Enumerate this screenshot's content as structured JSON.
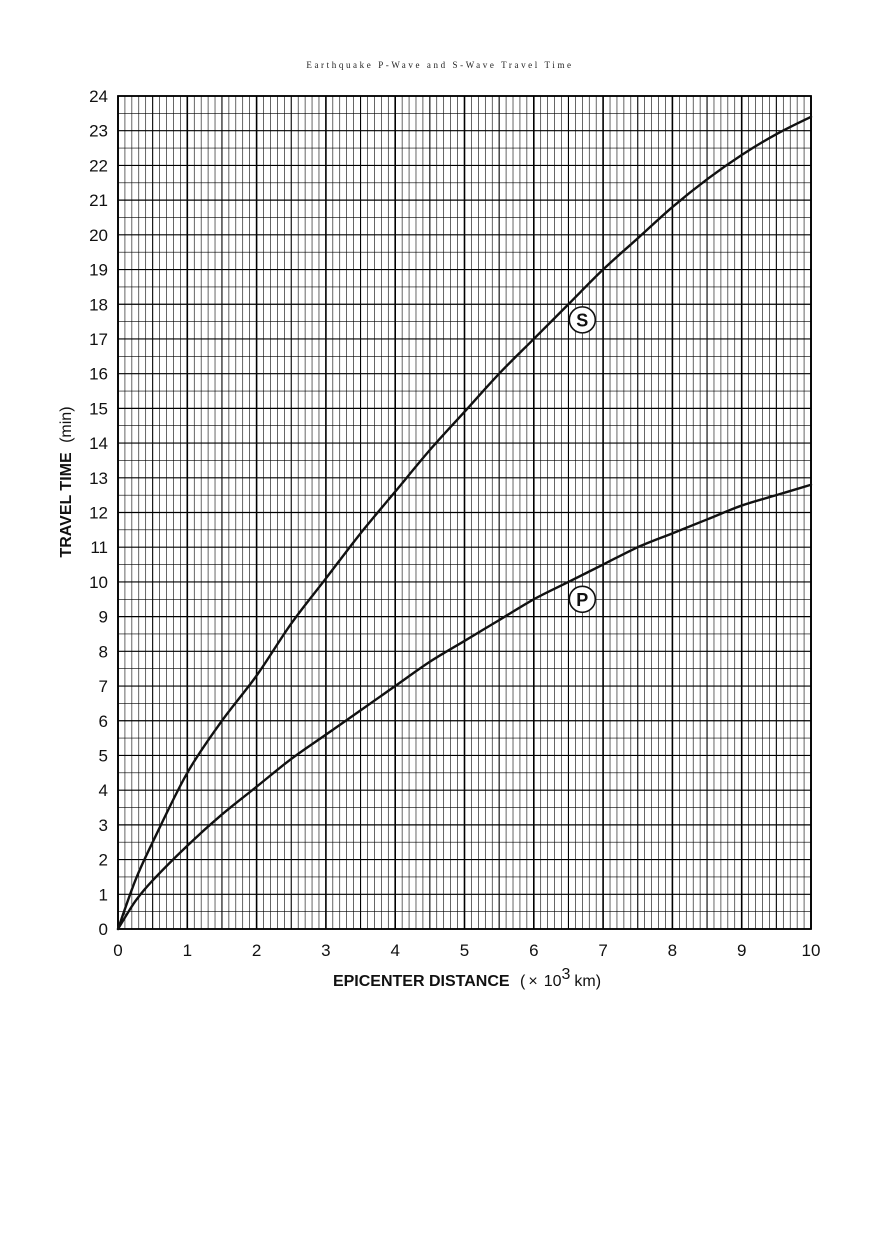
{
  "chart_data": {
    "type": "line",
    "title": "Earthquake P-Wave and S-Wave Travel Time",
    "xlabel": "EPICENTER DISTANCE",
    "xlabel_unit_prefix": "(",
    "xlabel_unit_times": "×",
    "xlabel_unit_base": "10",
    "xlabel_unit_exp": "3",
    "xlabel_unit_suffix": "km)",
    "ylabel": "TRAVEL TIME",
    "ylabel_unit": "(min)",
    "xlim": [
      0,
      10
    ],
    "ylim": [
      0,
      24
    ],
    "x_ticks": [
      "0",
      "1",
      "2",
      "3",
      "4",
      "5",
      "6",
      "7",
      "8",
      "9",
      "10"
    ],
    "y_ticks": [
      "0",
      "1",
      "2",
      "3",
      "4",
      "5",
      "6",
      "7",
      "8",
      "9",
      "10",
      "11",
      "12",
      "13",
      "14",
      "15",
      "16",
      "17",
      "18",
      "19",
      "20",
      "21",
      "22",
      "23",
      "24"
    ],
    "grid": true,
    "series": [
      {
        "name": "S",
        "x": [
          0,
          0.25,
          0.5,
          1,
          1.5,
          2,
          2.5,
          3,
          3.5,
          4,
          4.5,
          5,
          5.5,
          6,
          6.5,
          7,
          7.5,
          8,
          8.5,
          9,
          9.5,
          10
        ],
        "y": [
          0,
          1.4,
          2.5,
          4.5,
          6.0,
          7.3,
          8.8,
          10.1,
          11.4,
          12.6,
          13.8,
          14.9,
          16.0,
          17.0,
          18.0,
          19.0,
          19.9,
          20.8,
          21.6,
          22.3,
          22.9,
          23.4
        ]
      },
      {
        "name": "P",
        "x": [
          0,
          0.25,
          0.5,
          1,
          1.5,
          2,
          2.5,
          3,
          3.5,
          4,
          4.5,
          5,
          5.5,
          6,
          6.5,
          7,
          7.5,
          8,
          8.5,
          9,
          9.5,
          10
        ],
        "y": [
          0,
          0.8,
          1.4,
          2.4,
          3.3,
          4.1,
          4.9,
          5.6,
          6.3,
          7.0,
          7.7,
          8.3,
          8.9,
          9.5,
          10.0,
          10.5,
          11.0,
          11.4,
          11.8,
          12.2,
          12.5,
          12.8
        ]
      }
    ],
    "series_label_positions": [
      {
        "name": "S",
        "x": 6.7,
        "y": 17.55
      },
      {
        "name": "P",
        "x": 6.7,
        "y": 9.5
      }
    ]
  }
}
